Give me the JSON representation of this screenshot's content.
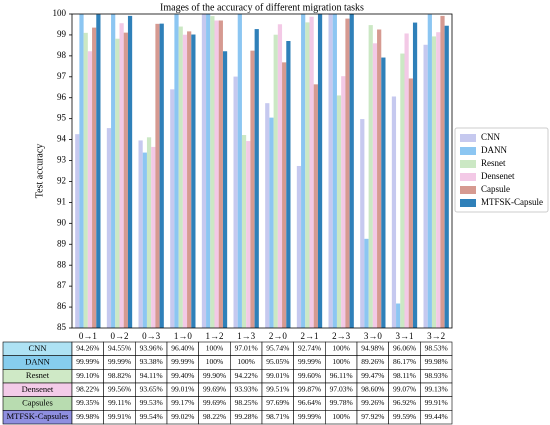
{
  "chart_data": {
    "type": "bar",
    "title": "Images of the accuracy of different migration tasks",
    "y_label": "Test accuracy",
    "categories": [
      "0→1",
      "0→2",
      "0→3",
      "1→0",
      "1→2",
      "1→3",
      "2→0",
      "2→1",
      "2→3",
      "3→0",
      "3→1",
      "3→2"
    ],
    "ylim": [
      85,
      100
    ],
    "yticks": [
      85,
      86,
      87,
      88,
      89,
      90,
      91,
      92,
      93,
      94,
      95,
      96,
      97,
      98,
      99,
      100
    ],
    "grid": false,
    "legend": "right",
    "series": [
      {
        "name": "CNN",
        "color": "#c6c9ef",
        "values": [
          94.26,
          94.55,
          93.96,
          96.4,
          100,
          97.01,
          95.74,
          92.74,
          100,
          94.98,
          96.06,
          98.53
        ],
        "value_labels": [
          "94.26%",
          "94.55%",
          "93.96%",
          "96.40%",
          "100%",
          "97.01%",
          "95.74%",
          "92.74%",
          "100%",
          "94.98%",
          "96.06%",
          "98.53%"
        ]
      },
      {
        "name": "DANN",
        "color": "#8cc6f2",
        "values": [
          99.99,
          99.99,
          93.38,
          99.99,
          100,
          100,
          95.05,
          99.99,
          100,
          89.26,
          86.17,
          99.98
        ],
        "value_labels": [
          "99.99%",
          "99.99%",
          "93.38%",
          "99.99%",
          "100%",
          "100%",
          "95.05%",
          "99.99%",
          "100%",
          "89.26%",
          "86.17%",
          "99.98%"
        ]
      },
      {
        "name": "Resnet",
        "color": "#cbe8c4",
        "values": [
          99.1,
          98.82,
          94.11,
          99.4,
          99.9,
          94.22,
          99.01,
          99.6,
          96.11,
          99.47,
          98.11,
          98.93
        ],
        "value_labels": [
          "99.10%",
          "98.82%",
          "94.11%",
          "99.40%",
          "99.90%",
          "94.22%",
          "99.01%",
          "99.60%",
          "96.11%",
          "99.47%",
          "98.11%",
          "98.93%"
        ]
      },
      {
        "name": "Densenet",
        "color": "#f3c9e6",
        "values": [
          98.22,
          99.56,
          93.65,
          99.01,
          99.69,
          93.93,
          99.51,
          99.87,
          97.03,
          98.6,
          99.07,
          99.13
        ],
        "value_labels": [
          "98.22%",
          "99.56%",
          "93.65%",
          "99.01%",
          "99.69%",
          "93.93%",
          "99.51%",
          "99.87%",
          "97.03%",
          "98.60%",
          "99.07%",
          "99.13%"
        ]
      },
      {
        "name": "Capsule",
        "color": "#d69a91",
        "values": [
          99.35,
          99.11,
          99.53,
          99.17,
          99.69,
          98.25,
          97.69,
          96.64,
          99.78,
          99.26,
          96.92,
          99.91
        ],
        "value_labels": [
          "99.35%",
          "99.11%",
          "99.53%",
          "99.17%",
          "99.69%",
          "98.25%",
          "97.69%",
          "96.64%",
          "99.78%",
          "99.26%",
          "96.92%",
          "99.91%"
        ]
      },
      {
        "name": "MTFSK-Capsule",
        "color": "#2f80b9",
        "values": [
          99.98,
          99.91,
          99.54,
          99.02,
          98.22,
          99.28,
          98.71,
          99.99,
          100,
          97.92,
          99.59,
          99.44
        ],
        "value_labels": [
          "99.98%",
          "99.91%",
          "99.54%",
          "99.02%",
          "98.22%",
          "99.28%",
          "98.71%",
          "99.99%",
          "100%",
          "97.92%",
          "99.59%",
          "99.44%"
        ]
      }
    ]
  },
  "table": {
    "row_labels": [
      "CNN",
      "DANN",
      "Resnet",
      "Densenet",
      "Capsules",
      "MTFSK-Capsules"
    ],
    "colors": [
      "#aee2f4",
      "#86cdee",
      "#cfe9c6",
      "#f3cbe8",
      "#b8dcb0",
      "#8f8fe0"
    ]
  }
}
